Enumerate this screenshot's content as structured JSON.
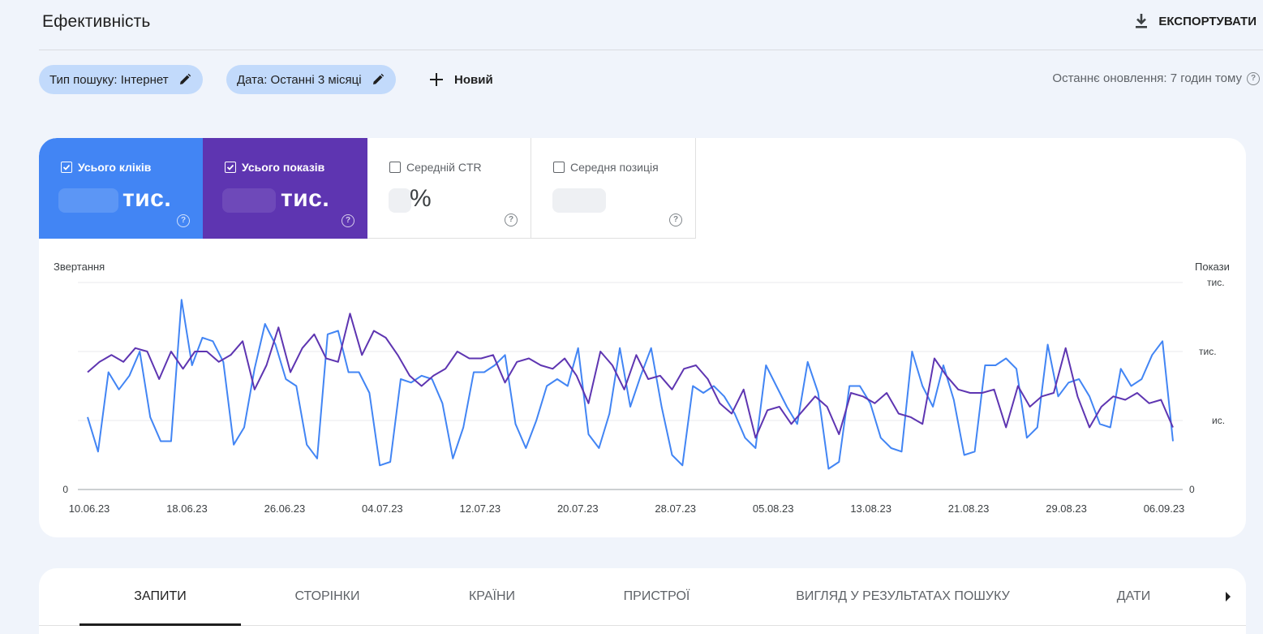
{
  "header": {
    "title": "Ефективність",
    "export_label": "ЕКСПОРТУВАТИ"
  },
  "filters": {
    "search_type": "Тип пошуку: Інтернет",
    "date": "Дата: Останні 3 місяці",
    "new_label": "Новий",
    "last_update": "Останнє оновлення: 7 годин тому"
  },
  "metrics": {
    "clicks": {
      "label": "Усього кліків",
      "value_suffix": "тис.",
      "checked": true,
      "color": "#4285f4"
    },
    "impressions": {
      "label": "Усього показів",
      "value_suffix": "тис.",
      "checked": true,
      "color": "#5e35b1"
    },
    "ctr": {
      "label": "Середній CTR",
      "value_suffix": "%",
      "checked": false
    },
    "position": {
      "label": "Середня позиція",
      "checked": false
    }
  },
  "chart_data": {
    "type": "line",
    "left_axis_label": "Звертання",
    "right_axis_label": "Покази",
    "right_axis_unit": "тис.",
    "left_ticks": [
      "0"
    ],
    "right_ticks": [
      "тис.",
      "тис.",
      "ис.",
      "0"
    ],
    "x_tick_labels": [
      "10.06.23",
      "18.06.23",
      "26.06.23",
      "04.07.23",
      "12.07.23",
      "20.07.23",
      "28.07.23",
      "05.08.23",
      "13.08.23",
      "21.08.23",
      "29.08.23",
      "06.09.23"
    ],
    "ylim": [
      0,
      300
    ],
    "series": [
      {
        "color": "#4285f4",
        "values": [
          105,
          55,
          170,
          145,
          165,
          200,
          105,
          70,
          70,
          275,
          180,
          220,
          215,
          185,
          65,
          90,
          175,
          240,
          210,
          160,
          150,
          65,
          45,
          225,
          230,
          170,
          170,
          140,
          35,
          40,
          160,
          155,
          165,
          160,
          125,
          45,
          90,
          170,
          170,
          180,
          195,
          95,
          60,
          100,
          150,
          160,
          150,
          205,
          80,
          60,
          110,
          205,
          120,
          165,
          205,
          120,
          50,
          35,
          150,
          140,
          150,
          135,
          110,
          75,
          60,
          180,
          150,
          120,
          95,
          185,
          140,
          30,
          40,
          150,
          150,
          125,
          75,
          60,
          55,
          200,
          150,
          120,
          180,
          130,
          50,
          55,
          180,
          180,
          190,
          175,
          75,
          90,
          210,
          135,
          155,
          160,
          135,
          95,
          90,
          175,
          150,
          160,
          195,
          215,
          70
        ],
        "axis": "left"
      },
      {
        "color": "#5e35b1",
        "values": [
          170,
          185,
          195,
          185,
          205,
          200,
          160,
          200,
          175,
          200,
          200,
          185,
          195,
          215,
          145,
          180,
          235,
          170,
          205,
          225,
          190,
          185,
          255,
          195,
          230,
          220,
          195,
          165,
          150,
          165,
          175,
          200,
          190,
          190,
          195,
          155,
          185,
          190,
          180,
          175,
          190,
          165,
          125,
          200,
          180,
          145,
          195,
          160,
          165,
          145,
          175,
          180,
          160,
          125,
          110,
          145,
          75,
          115,
          120,
          95,
          115,
          135,
          120,
          80,
          140,
          135,
          125,
          140,
          110,
          105,
          95,
          190,
          165,
          145,
          140,
          140,
          145,
          90,
          150,
          120,
          135,
          140,
          205,
          135,
          90,
          120,
          135,
          130,
          140,
          125,
          130,
          90
        ]
      }
    ]
  },
  "tabs": {
    "items": [
      "ЗАПИТИ",
      "СТОРІНКИ",
      "КРАЇНИ",
      "ПРИСТРОЇ",
      "ВИГЛЯД У РЕЗУЛЬТАТАХ ПОШУКУ",
      "ДАТИ"
    ],
    "active": "ЗАПИТИ"
  }
}
